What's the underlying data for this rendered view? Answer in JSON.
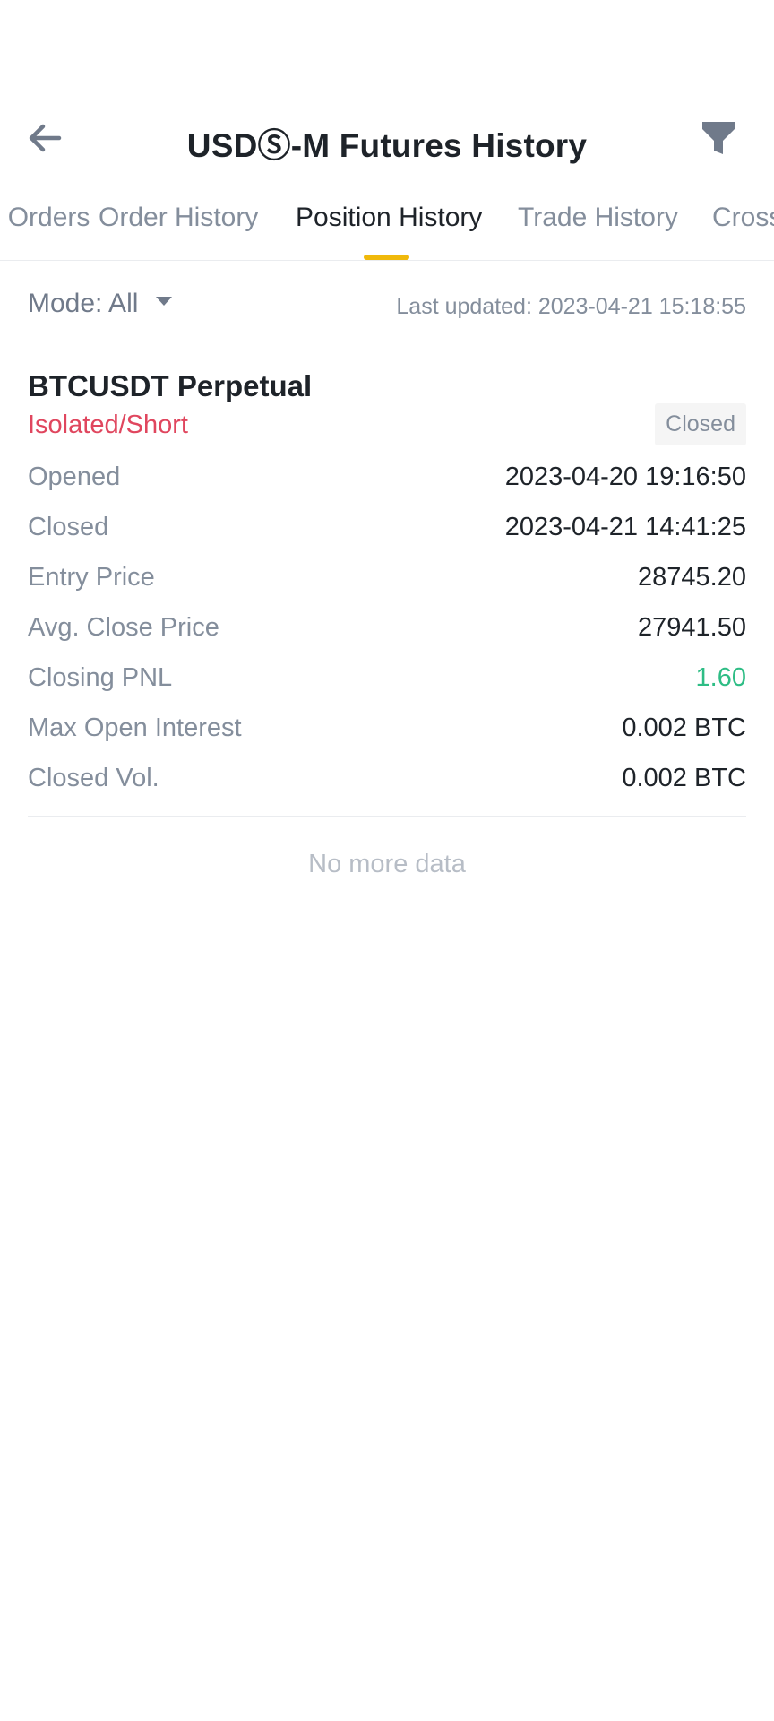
{
  "header": {
    "title": "USDⓈ-M Futures History"
  },
  "tabs": [
    {
      "label": "Open Orders"
    },
    {
      "label": "Order History"
    },
    {
      "label": "Position History"
    },
    {
      "label": "Trade History"
    },
    {
      "label": "Cross"
    }
  ],
  "active_tab": "Position History",
  "mode": {
    "label": "Mode: All"
  },
  "last_updated": "Last updated: 2023-04-21 15:18:55",
  "position": {
    "symbol": "BTCUSDT Perpetual",
    "margin_side": "Isolated/Short",
    "status": "Closed",
    "fields": [
      {
        "label": "Opened",
        "value": "2023-04-20 19:16:50"
      },
      {
        "label": "Closed",
        "value": "2023-04-21 14:41:25"
      },
      {
        "label": "Entry Price",
        "value": "28745.20"
      },
      {
        "label": "Avg. Close Price",
        "value": "27941.50"
      },
      {
        "label": "Closing PNL",
        "value": "1.60"
      },
      {
        "label": "Max Open Interest",
        "value": "0.002 BTC"
      },
      {
        "label": "Closed Vol.",
        "value": "0.002 BTC"
      }
    ]
  },
  "footer_text": "No more data",
  "colors": {
    "accent": "#f0b90b",
    "short": "#e0465e",
    "profit": "#2ebd85"
  }
}
